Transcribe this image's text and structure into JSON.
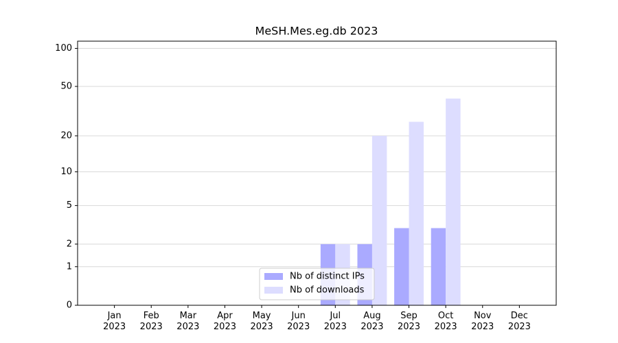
{
  "chart_data": {
    "type": "bar",
    "title": "MeSH.Mes.eg.db 2023",
    "categories": [
      "Jan\n2023",
      "Feb\n2023",
      "Mar\n2023",
      "Apr\n2023",
      "May\n2023",
      "Jun\n2023",
      "Jul\n2023",
      "Aug\n2023",
      "Sep\n2023",
      "Oct\n2023",
      "Nov\n2023",
      "Dec\n2023"
    ],
    "series": [
      {
        "name": "Nb of distinct IPs",
        "color": "#aaaaff",
        "values": [
          0,
          0,
          0,
          0,
          0,
          0,
          2,
          2,
          3,
          3,
          0,
          0
        ]
      },
      {
        "name": "Nb of downloads",
        "color": "#ddddff",
        "values": [
          0,
          0,
          0,
          0,
          0,
          0,
          2,
          20,
          26,
          40,
          0,
          0
        ]
      }
    ],
    "yscale": "log1p",
    "ylim": [
      0,
      114
    ],
    "yticks": [
      0,
      1,
      2,
      5,
      10,
      20,
      50,
      100
    ],
    "grid": true,
    "legend": "lower center"
  }
}
